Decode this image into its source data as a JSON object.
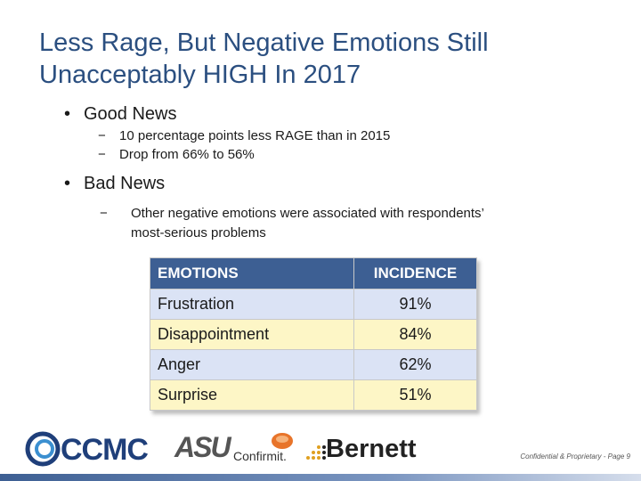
{
  "title": "Less Rage, But Negative Emotions Still Unacceptably HIGH In 2017",
  "bullets": [
    {
      "label": "Good News",
      "subs": [
        "10 percentage points less RAGE than in 2015",
        "Drop from 66% to 56%"
      ]
    },
    {
      "label": "Bad News",
      "subs": [
        "Other negative emotions were associated with respondents’ most-serious problems"
      ]
    }
  ],
  "bullet_glyph": "•",
  "dash_glyph": "−",
  "table": {
    "headers": [
      "EMOTIONS",
      "INCIDENCE"
    ],
    "rows": [
      {
        "emotion": "Frustration",
        "incidence": "91%"
      },
      {
        "emotion": "Disappointment",
        "incidence": "84%"
      },
      {
        "emotion": "Anger",
        "incidence": "62%"
      },
      {
        "emotion": "Surprise",
        "incidence": "51%"
      }
    ]
  },
  "logos": {
    "ccmc": "CCMC",
    "asu": "ASU",
    "confirmit": "Confirmit.",
    "bernett": "Bernett"
  },
  "footer": "Confidential & Proprietary - Page 9",
  "colors": {
    "title": "#2b4f80",
    "header_bg": "#3d5f93",
    "row_blue": "#dbe3f5",
    "row_yellow": "#fdf6c6"
  }
}
